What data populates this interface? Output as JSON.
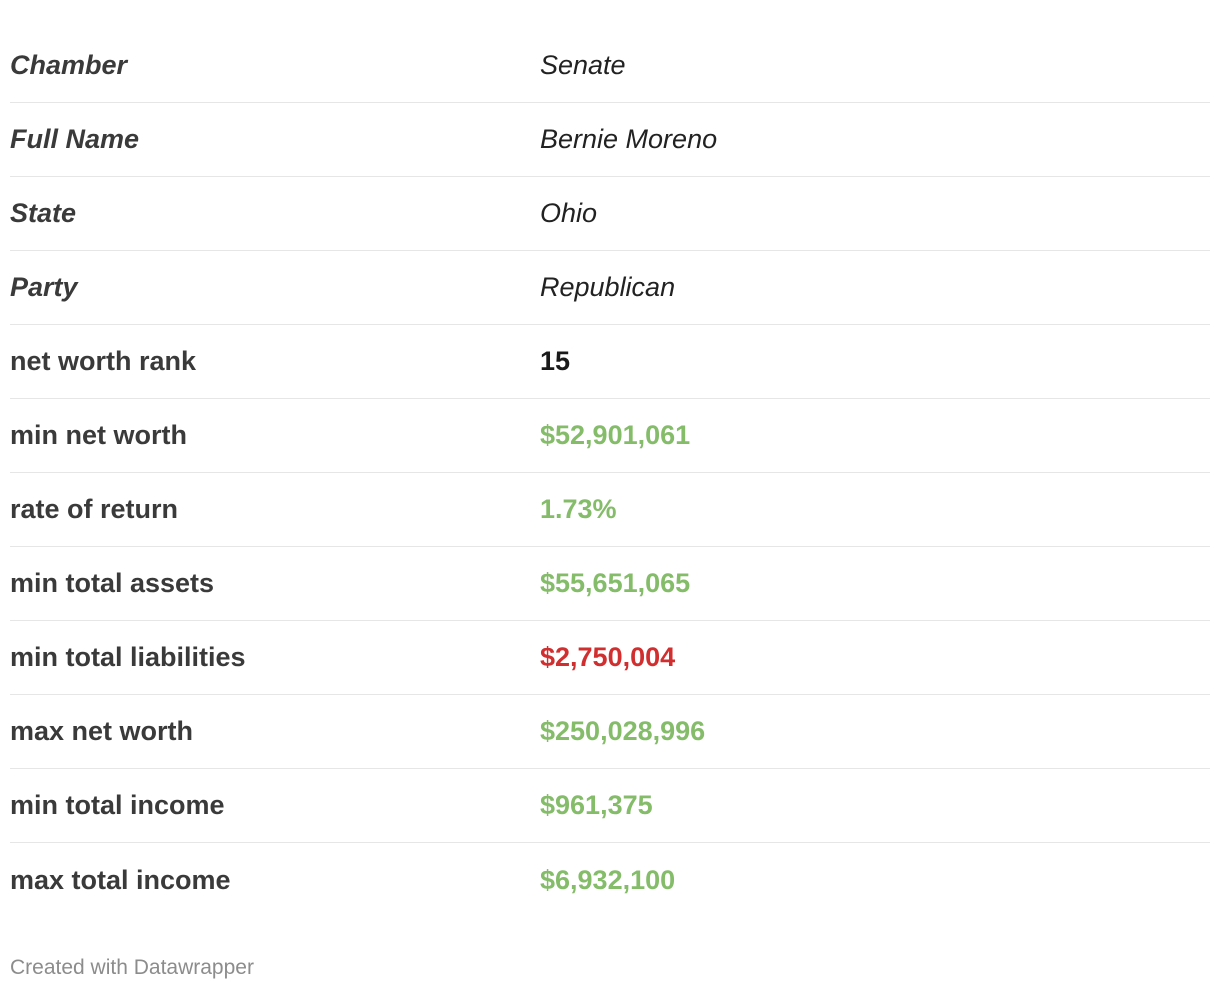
{
  "chart_data": {
    "type": "table",
    "rows": [
      {
        "label": "Chamber",
        "value": "Senate",
        "label_style": "italic",
        "value_style": "text"
      },
      {
        "label": "Full Name",
        "value": "Bernie Moreno",
        "label_style": "italic",
        "value_style": "text"
      },
      {
        "label": "State",
        "value": "Ohio",
        "label_style": "italic",
        "value_style": "text"
      },
      {
        "label": "Party",
        "value": "Republican",
        "label_style": "italic",
        "value_style": "text"
      },
      {
        "label": "net worth rank",
        "value": "15",
        "label_style": "normal",
        "value_style": "rank"
      },
      {
        "label": "min net worth",
        "value": "$52,901,061",
        "label_style": "normal",
        "value_style": "positive"
      },
      {
        "label": "rate of return",
        "value": "1.73%",
        "label_style": "normal",
        "value_style": "positive"
      },
      {
        "label": "min total assets",
        "value": "$55,651,065",
        "label_style": "normal",
        "value_style": "positive"
      },
      {
        "label": "min total liabilities",
        "value": "$2,750,004",
        "label_style": "normal",
        "value_style": "negative"
      },
      {
        "label": "max net worth",
        "value": "$250,028,996",
        "label_style": "normal",
        "value_style": "positive"
      },
      {
        "label": "min total income",
        "value": "$961,375",
        "label_style": "normal",
        "value_style": "positive"
      },
      {
        "label": "max total income",
        "value": "$6,932,100",
        "label_style": "normal",
        "value_style": "positive"
      }
    ]
  },
  "colors": {
    "positive": "#84bc6a",
    "negative": "#d12f2f",
    "label": "#3a3a3a",
    "footer": "#8c8c8c"
  },
  "footer": {
    "text": "Created with Datawrapper"
  }
}
